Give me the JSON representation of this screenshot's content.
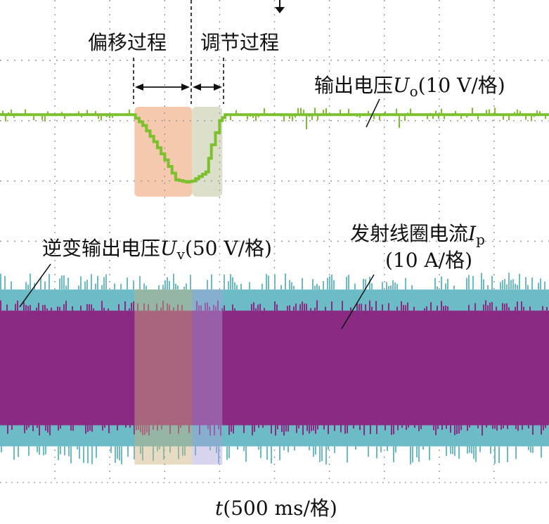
{
  "colors": {
    "background": "#ffffff",
    "grid": "#9a9a9a",
    "uo": "#7dc02e",
    "uv": "#6bbcc6",
    "ip": "#8a2a82",
    "offset_region": "#f4c3a4",
    "regulate_region": "#d8dcc4"
  },
  "labels": {
    "offset_process": "偏移过程",
    "regulate_process": "调节过程",
    "uo_prefix": "输出电压",
    "uo_sym": "U",
    "uo_sub": "o",
    "uo_scale": "(10 V/格)",
    "uv_prefix": "逆变输出电压",
    "uv_sym": "U",
    "uv_sub": "v",
    "uv_scale": "(50 V/格)",
    "ip_prefix": "发射线圈电流",
    "ip_sym": "I",
    "ip_sub": "p",
    "ip_scale": "(10 A/格)",
    "x_sym": "t",
    "x_scale": "(500 ms/格)"
  },
  "chart_data": {
    "type": "line",
    "grid": true,
    "x_divisions": 10,
    "y_divisions": 8,
    "time_per_div_ms": 500,
    "trigger_marker": "top",
    "x_unit": "div",
    "regions": [
      {
        "name": "偏移过程",
        "x_start": 2.45,
        "x_end": 3.5
      },
      {
        "name": "调节过程",
        "x_start": 3.5,
        "x_end": 4.05
      }
    ],
    "series": [
      {
        "name": "输出电压U_o",
        "scale": "10 V/格",
        "unit": "div",
        "baseline_div": 1.9,
        "x": [
          0,
          2.4,
          2.6,
          2.8,
          3.0,
          3.2,
          3.4,
          3.5,
          3.75,
          3.85,
          4.0,
          4.1,
          10
        ],
        "y": [
          0,
          0,
          -0.18,
          -0.45,
          -0.75,
          -1.08,
          -1.12,
          -1.1,
          -0.95,
          -0.5,
          -0.1,
          0,
          0
        ]
      },
      {
        "name": "逆变输出电压U_v",
        "scale": "50 V/格",
        "unit": "div",
        "amplitude_div": 1.3,
        "center_div": 6.1
      },
      {
        "name": "发射线圈电流I_p",
        "scale": "10 A/格",
        "unit": "div",
        "amplitude_div": 0.95,
        "center_div": 6.1,
        "x_end_after_transient": 4.05
      }
    ]
  }
}
